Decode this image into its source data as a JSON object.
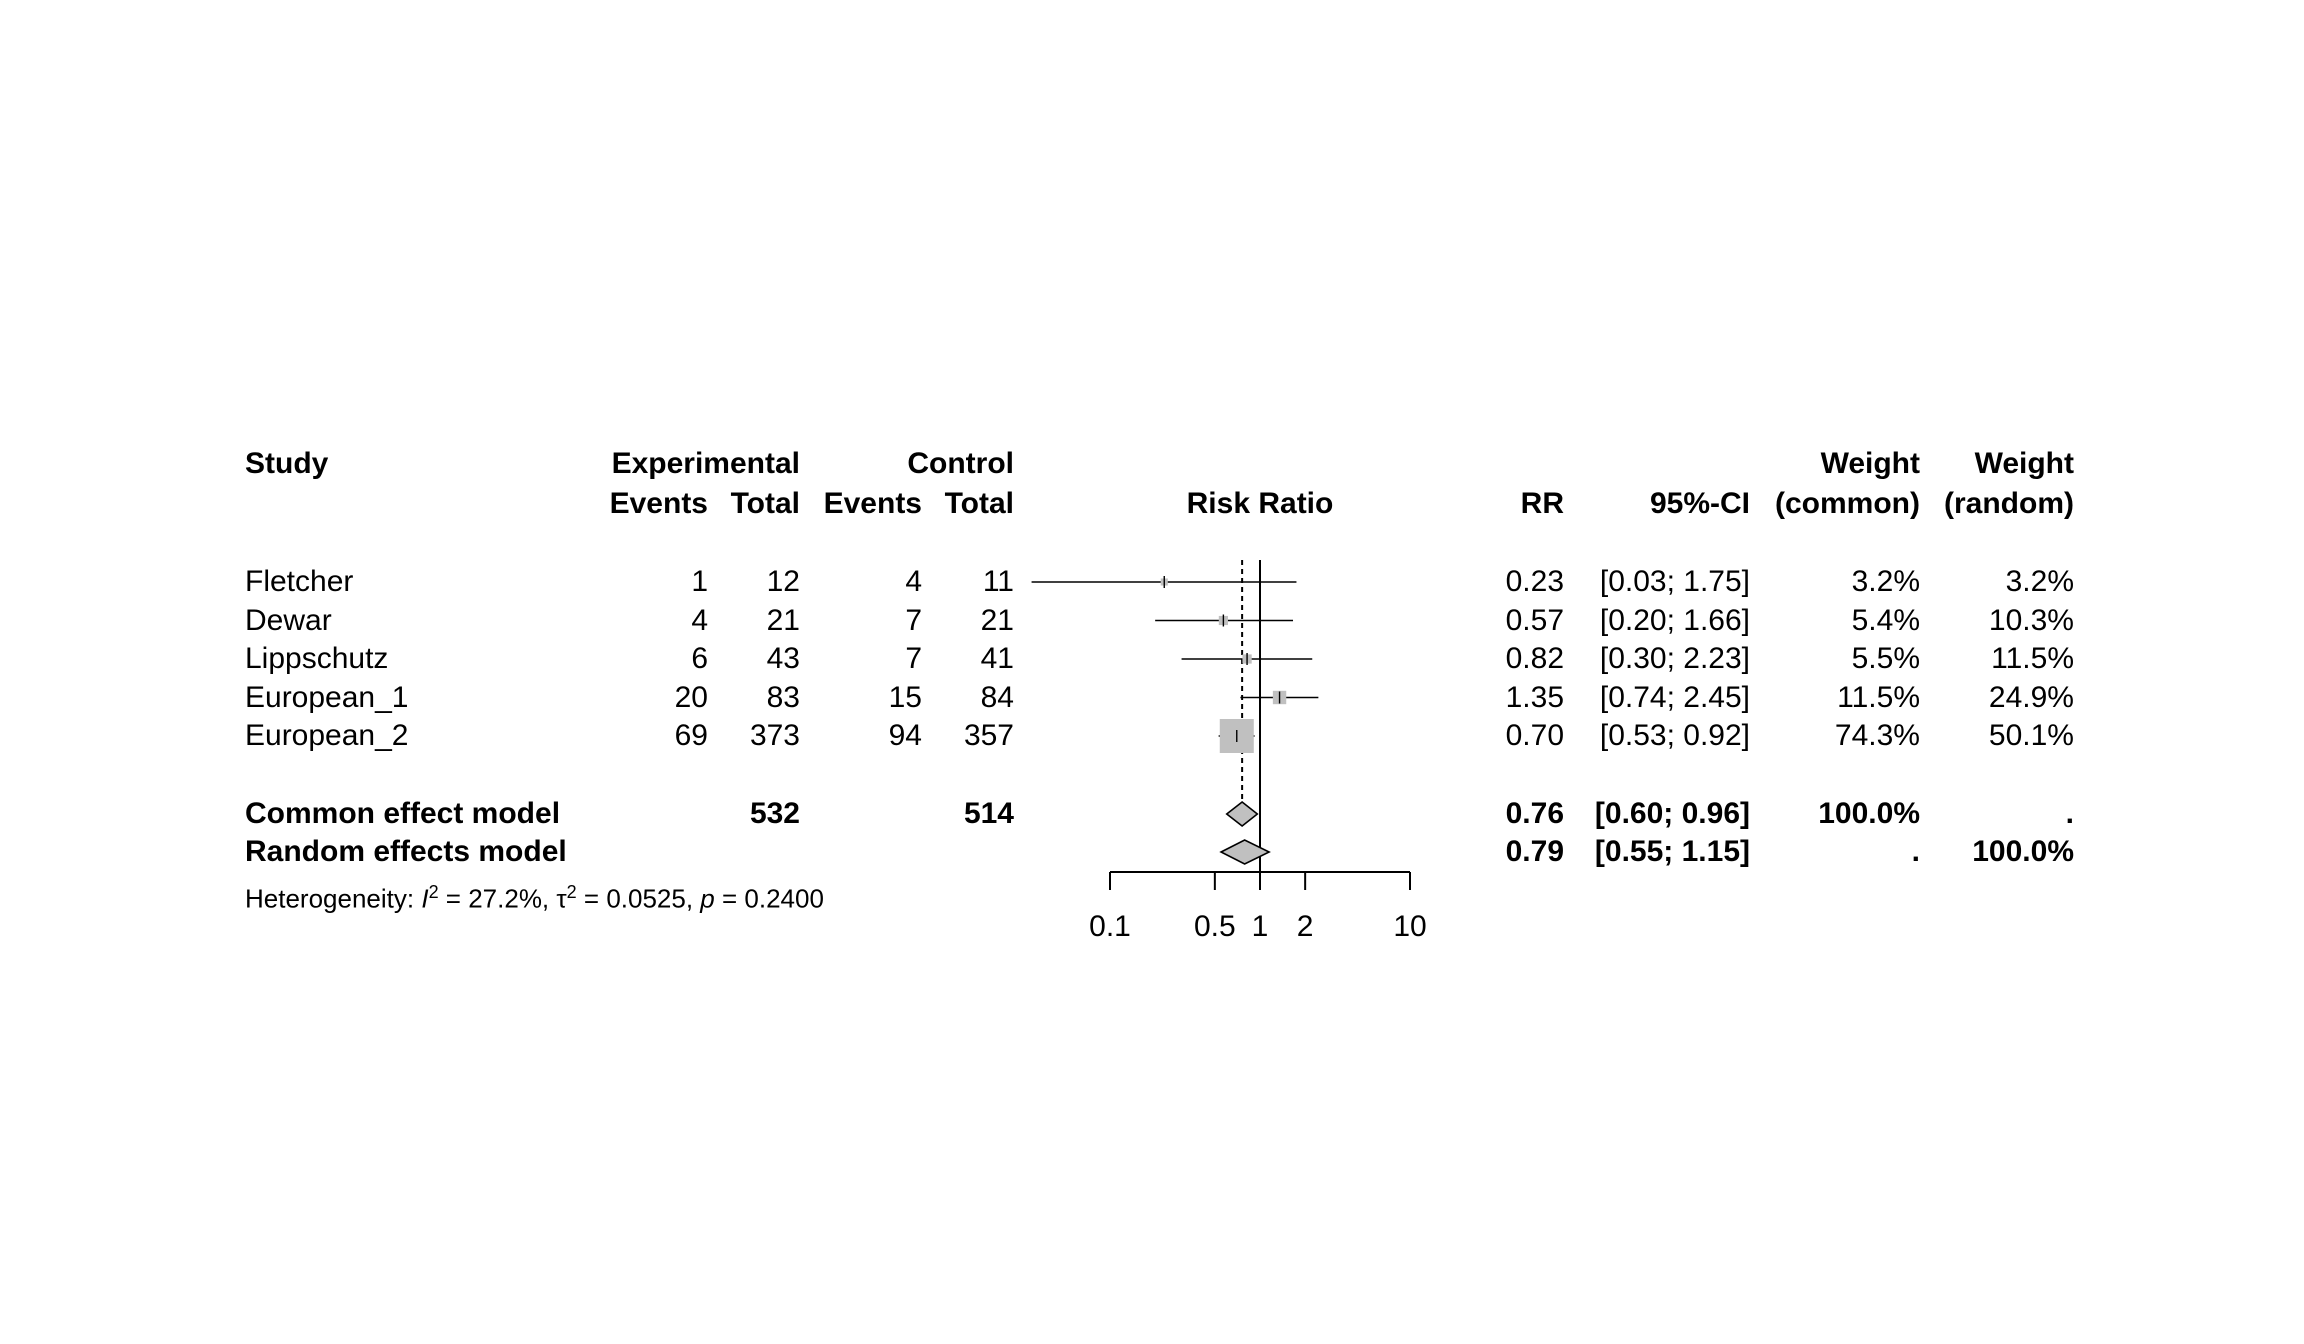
{
  "chart_data": {
    "type": "forest",
    "headers": {
      "study": "Study",
      "experimental": "Experimental",
      "control": "Control",
      "events": "Events",
      "total": "Total",
      "risk_ratio": "Risk Ratio",
      "rr": "RR",
      "ci": "95%-CI",
      "weight": "Weight",
      "common": "(common)",
      "random": "(random)"
    },
    "studies": [
      {
        "name": "Fletcher",
        "e_events": "1",
        "e_total": "12",
        "c_events": "4",
        "c_total": "11",
        "rr": 0.23,
        "lower": 0.03,
        "upper": 1.75,
        "rr_text": "0.23",
        "ci_text": "[0.03; 1.75]",
        "w_common": "3.2%",
        "w_random": "3.2%"
      },
      {
        "name": "Dewar",
        "e_events": "4",
        "e_total": "21",
        "c_events": "7",
        "c_total": "21",
        "rr": 0.57,
        "lower": 0.2,
        "upper": 1.66,
        "rr_text": "0.57",
        "ci_text": "[0.20; 1.66]",
        "w_common": "5.4%",
        "w_random": "10.3%"
      },
      {
        "name": "Lippschutz",
        "e_events": "6",
        "e_total": "43",
        "c_events": "7",
        "c_total": "41",
        "rr": 0.82,
        "lower": 0.3,
        "upper": 2.23,
        "rr_text": "0.82",
        "ci_text": "[0.30; 2.23]",
        "w_common": "5.5%",
        "w_random": "11.5%"
      },
      {
        "name": "European_1",
        "e_events": "20",
        "e_total": "83",
        "c_events": "15",
        "c_total": "84",
        "rr": 1.35,
        "lower": 0.74,
        "upper": 2.45,
        "rr_text": "1.35",
        "ci_text": "[0.74; 2.45]",
        "w_common": "11.5%",
        "w_random": "24.9%"
      },
      {
        "name": "European_2",
        "e_events": "69",
        "e_total": "373",
        "c_events": "94",
        "c_total": "357",
        "rr": 0.7,
        "lower": 0.53,
        "upper": 0.92,
        "rr_text": "0.70",
        "ci_text": "[0.53; 0.92]",
        "w_common": "74.3%",
        "w_random": "50.1%"
      }
    ],
    "common": {
      "name": "Common effect model",
      "e_total": "532",
      "c_total": "514",
      "rr": 0.76,
      "lower": 0.6,
      "upper": 0.96,
      "rr_text": "0.76",
      "ci_text": "[0.60; 0.96]",
      "w_common": "100.0%",
      "w_random": "."
    },
    "random": {
      "name": "Random effects model",
      "rr": 0.79,
      "lower": 0.55,
      "upper": 1.15,
      "rr_text": "0.79",
      "ci_text": "[0.55; 1.15]",
      "w_common": ".",
      "w_random": "100.0%"
    },
    "heterogeneity": {
      "prefix": "Heterogeneity: ",
      "i2_symbol": "I",
      "i2_value": " = 27.2%, ",
      "tau2_symbol": "τ",
      "tau2_value": " = 0.0525, ",
      "p_symbol": "p",
      "p_value": " = 0.2400",
      "sup": "2"
    },
    "x_axis": {
      "scale": "log",
      "ticks": [
        0.1,
        0.5,
        1,
        2,
        10
      ],
      "tick_labels": [
        "0.1",
        "0.5",
        "1",
        "2",
        "10"
      ],
      "xlim": [
        0.1,
        10
      ]
    },
    "colors": {
      "box": "#c0c0c0",
      "line": "#000000"
    }
  }
}
